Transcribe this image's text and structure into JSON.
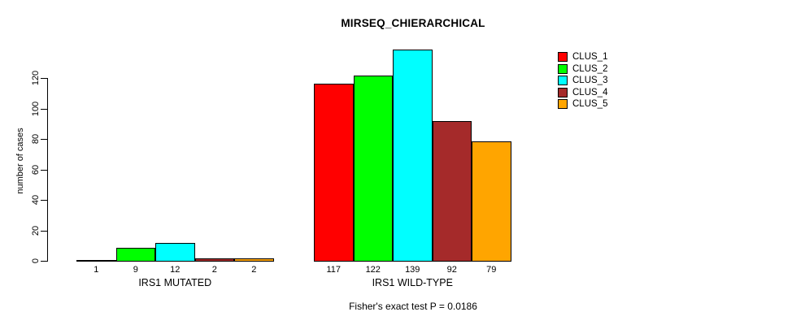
{
  "chart_data": {
    "type": "bar",
    "title": "MIRSEQ_CHIERARCHICAL",
    "ylabel": "number of cases",
    "xlabel": "",
    "ylim": [
      0,
      120
    ],
    "yticks": [
      0,
      20,
      40,
      60,
      80,
      100,
      120
    ],
    "grid": false,
    "legend_position": "top-right",
    "bar_border_color": "#000000",
    "categories": [
      "IRS1 MUTATED",
      "IRS1 WILD-TYPE"
    ],
    "series": [
      {
        "name": "CLUS_1",
        "color": "#FF0000",
        "values": [
          1,
          117
        ]
      },
      {
        "name": "CLUS_2",
        "color": "#00FF00",
        "values": [
          9,
          122
        ]
      },
      {
        "name": "CLUS_3",
        "color": "#00FFFF",
        "values": [
          12,
          139
        ]
      },
      {
        "name": "CLUS_4",
        "color": "#A52A2A",
        "values": [
          2,
          92
        ]
      },
      {
        "name": "CLUS_5",
        "color": "#FFA500",
        "values": [
          2,
          79
        ]
      }
    ],
    "bar_value_labels": [
      [
        "1",
        "9",
        "12",
        "2",
        "2"
      ],
      [
        "117",
        "122",
        "139",
        "92",
        "79"
      ]
    ],
    "footnote": "Fisher's exact test P = 0.0186"
  }
}
